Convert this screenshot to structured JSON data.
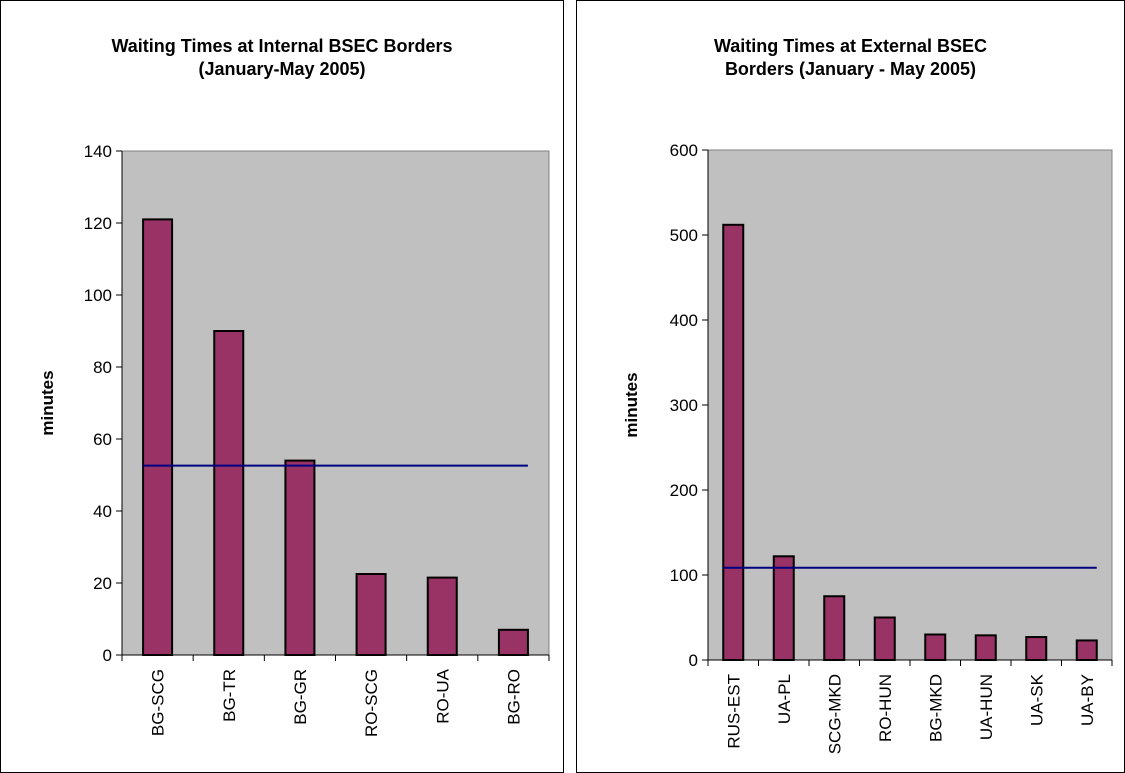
{
  "chart_data": [
    {
      "type": "bar",
      "title_line1": "Waiting Times at Internal BSEC Borders",
      "title_line2": "(January-May 2005)",
      "xlabel": "",
      "ylabel": "minutes",
      "categories": [
        "BG-SCG",
        "BG-TR",
        "BG-GR",
        "RO-SCG",
        "RO-UA",
        "BG-RO"
      ],
      "values": [
        121,
        90,
        54,
        22.5,
        21.5,
        7
      ],
      "ylim": [
        0,
        140
      ],
      "yticks": [
        "0",
        "20",
        "40",
        "60",
        "80",
        "100",
        "120",
        "140"
      ],
      "reference_line": 52.6,
      "grid": false,
      "legend": "none",
      "bar_color": "#993366",
      "line_color": "#000080",
      "plot_bg": "#c0c0c0"
    },
    {
      "type": "bar",
      "title_line1": "Waiting Times at External BSEC",
      "title_line2": "Borders  (January - May 2005)",
      "xlabel": "",
      "ylabel": "minutes",
      "categories": [
        "RUS-EST",
        "UA-PL",
        "SCG-MKD",
        "RO-HUN",
        "BG-MKD",
        "UA-HUN",
        "UA-SK",
        "UA-BY"
      ],
      "values": [
        512,
        122,
        75,
        50,
        30,
        29,
        27,
        23
      ],
      "ylim": [
        0,
        600
      ],
      "yticks": [
        "0",
        "100",
        "200",
        "300",
        "400",
        "500",
        "600"
      ],
      "reference_line": 108.5,
      "grid": false,
      "legend": "none",
      "bar_color": "#993366",
      "line_color": "#000080",
      "plot_bg": "#c0c0c0"
    }
  ]
}
